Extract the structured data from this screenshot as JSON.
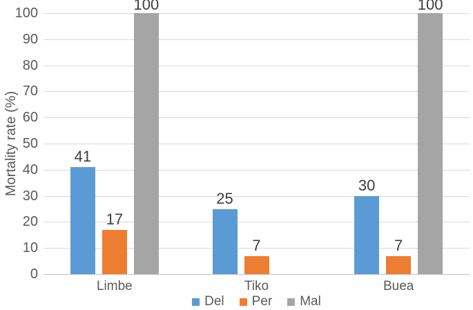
{
  "chart_data": {
    "type": "bar",
    "title": "",
    "categories": [
      "Limbe",
      "Tiko",
      "Buea"
    ],
    "series": [
      {
        "name": "Del",
        "color": "#5B9BD5",
        "values": [
          41,
          25,
          30
        ]
      },
      {
        "name": "Per",
        "color": "#ED7D31",
        "values": [
          17,
          7,
          7
        ]
      },
      {
        "name": "Mal",
        "color": "#A5A5A5",
        "values": [
          100,
          null,
          100
        ]
      }
    ],
    "xlabel": "",
    "ylabel": "Mortality rate (%)",
    "ylim": [
      0,
      100
    ],
    "ytick_step": 10,
    "ytick_labels": [
      "0",
      "10",
      "20",
      "30",
      "40",
      "50",
      "60",
      "70",
      "80",
      "90",
      "100"
    ],
    "grid": true,
    "legend_position": "bottom",
    "data_labels": true
  },
  "colors": {
    "background": "#ffffff",
    "gridline": "#d9d9d9",
    "axis_line": "#c2c2c2",
    "tick_text": "#595959",
    "data_label_text": "#3d3d3d"
  }
}
